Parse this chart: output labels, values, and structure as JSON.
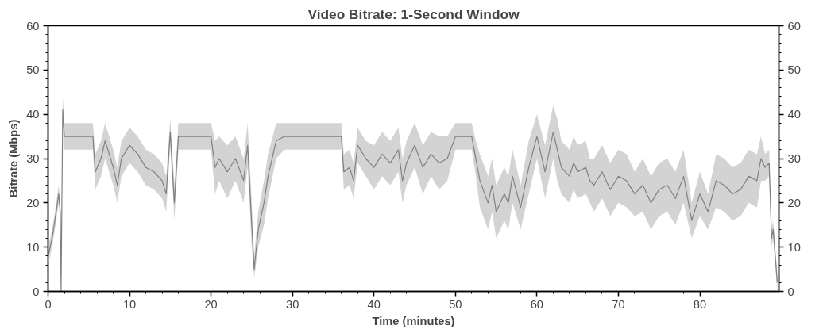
{
  "chart_data": {
    "type": "line",
    "title": "Video Bitrate: 1-Second Window",
    "xlabel": "Time (minutes)",
    "ylabel": "Bitrate (Mbps)",
    "xlim": [
      0,
      89.7
    ],
    "xticks": [
      0,
      10,
      20,
      30,
      40,
      50,
      60,
      70,
      80
    ],
    "ylim": [
      0,
      60
    ],
    "yticks": [
      0,
      10,
      20,
      30,
      40,
      50,
      60
    ],
    "y2lim": [
      0,
      60
    ],
    "y2ticks": [
      0,
      10,
      20,
      30,
      40,
      50,
      60
    ],
    "grid": false,
    "series": [
      {
        "color": "#808080",
        "x": [
          0,
          0.5,
          1,
          1.3,
          1.5,
          1.6,
          1.8,
          2,
          3,
          4,
          5,
          5.5,
          5.8,
          6.5,
          7,
          8,
          8.5,
          9,
          10,
          11,
          12,
          13,
          14,
          14.5,
          15,
          15.5,
          16,
          17,
          18,
          19,
          20,
          20.5,
          21,
          22,
          23,
          24,
          24.5,
          25,
          25.3,
          25.8,
          26.5,
          27,
          28,
          29,
          30,
          32,
          34,
          36,
          36.3,
          37,
          37.5,
          38,
          39,
          40,
          41,
          42,
          43,
          43.5,
          44,
          45,
          46,
          47,
          48,
          49,
          50,
          51,
          52,
          52.5,
          53,
          54,
          54.5,
          55,
          56,
          56.5,
          57,
          58,
          59,
          60,
          61,
          62,
          62.5,
          63,
          64,
          64.5,
          65,
          66,
          66.5,
          67,
          68,
          69,
          70,
          71,
          72,
          73,
          74,
          75,
          76,
          77,
          78,
          79,
          80,
          81,
          82,
          83,
          84,
          85,
          86,
          87,
          87.5,
          88,
          88.5,
          88.8,
          89,
          89.5
        ],
        "values": [
          8,
          12,
          18,
          22,
          18,
          0,
          41,
          35,
          35,
          35,
          35,
          35,
          27,
          30,
          34,
          28,
          24,
          30,
          33,
          31,
          28,
          27,
          25,
          22,
          36,
          20,
          35,
          35,
          35,
          35,
          35,
          28,
          30,
          27,
          30,
          25,
          33,
          15,
          5,
          14,
          20,
          26,
          34,
          35,
          35,
          35,
          35,
          35,
          27,
          28,
          25,
          33,
          30,
          28,
          31,
          29,
          32,
          25,
          29,
          33,
          28,
          31,
          29,
          30,
          35,
          35,
          35,
          30,
          25,
          20,
          24,
          18,
          22,
          20,
          26,
          19,
          28,
          35,
          27,
          36,
          32,
          28,
          26,
          29,
          27,
          28,
          25,
          24,
          27,
          23,
          26,
          25,
          22,
          24,
          20,
          23,
          24,
          21,
          26,
          16,
          22,
          18,
          25,
          24,
          22,
          23,
          26,
          25,
          30,
          28,
          29,
          12,
          14,
          2
        ],
        "lower": [
          6,
          10,
          16,
          20,
          16,
          0,
          38,
          32,
          32,
          32,
          32,
          32,
          23,
          26,
          30,
          24,
          20,
          26,
          29,
          27,
          24,
          23,
          21,
          18,
          33,
          16,
          32,
          32,
          32,
          32,
          32,
          22,
          25,
          21,
          25,
          20,
          28,
          10,
          3,
          10,
          15,
          21,
          30,
          32,
          32,
          32,
          32,
          32,
          23,
          24,
          21,
          29,
          26,
          23,
          26,
          24,
          27,
          20,
          24,
          28,
          22,
          26,
          23,
          25,
          32,
          32,
          32,
          26,
          19,
          14,
          18,
          12,
          16,
          14,
          20,
          14,
          22,
          30,
          21,
          30,
          25,
          22,
          20,
          23,
          21,
          22,
          20,
          18,
          21,
          17,
          20,
          19,
          17,
          18,
          14,
          17,
          18,
          15,
          20,
          12,
          17,
          14,
          19,
          18,
          16,
          17,
          20,
          19,
          25,
          25,
          26,
          10,
          12,
          0
        ],
        "upper": [
          10,
          14,
          20,
          24,
          20,
          0,
          44,
          38,
          38,
          38,
          38,
          38,
          31,
          34,
          38,
          32,
          28,
          34,
          37,
          35,
          32,
          31,
          29,
          26,
          39,
          24,
          38,
          38,
          38,
          38,
          38,
          34,
          35,
          33,
          35,
          30,
          38,
          20,
          8,
          18,
          25,
          31,
          38,
          38,
          38,
          38,
          38,
          38,
          31,
          32,
          29,
          37,
          34,
          33,
          36,
          34,
          37,
          30,
          34,
          38,
          33,
          36,
          35,
          35,
          38,
          38,
          38,
          34,
          31,
          26,
          30,
          24,
          28,
          26,
          32,
          24,
          34,
          40,
          33,
          42,
          39,
          34,
          32,
          35,
          33,
          34,
          30,
          30,
          33,
          29,
          32,
          31,
          27,
          30,
          26,
          29,
          30,
          27,
          32,
          20,
          27,
          22,
          31,
          30,
          28,
          29,
          32,
          31,
          35,
          31,
          32,
          14,
          16,
          4
        ]
      }
    ]
  }
}
